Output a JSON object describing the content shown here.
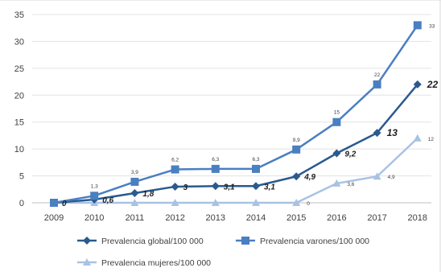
{
  "chart_data": {
    "type": "line",
    "title": "",
    "xlabel": "",
    "ylabel": "",
    "categories": [
      "2009",
      "2010",
      "2011",
      "2012",
      "2013",
      "2014",
      "2015",
      "2016",
      "2017",
      "2018"
    ],
    "ylim": [
      0,
      35
    ],
    "yticks": [
      0,
      5,
      10,
      15,
      20,
      25,
      30,
      35
    ],
    "grid": true,
    "legend_position": "bottom",
    "series": [
      {
        "name": "Prevalencia global/100 000",
        "values": [
          0,
          0.6,
          1.8,
          3,
          3.1,
          3.1,
          4.9,
          9.2,
          13,
          22
        ],
        "labels": [
          "0",
          "0,6",
          "1,8",
          "3",
          "3,1",
          "3,1",
          "4,9",
          "9,2",
          "13",
          "22"
        ],
        "marker": "diamond",
        "color": "#2a5a8f"
      },
      {
        "name": "Prevalencia varones/100 000",
        "values": [
          0,
          1.3,
          3.9,
          6.2,
          6.3,
          6.3,
          9.9,
          15,
          22,
          33
        ],
        "labels": [
          "",
          "1,3",
          "3,9",
          "6,2",
          "6,3",
          "6,3",
          "9,9",
          "15",
          "22",
          "33"
        ],
        "marker": "square",
        "color": "#4a7fc1"
      },
      {
        "name": "Prevalencia mujeres/100 000",
        "values": [
          0,
          0,
          0,
          0,
          0,
          0,
          0,
          3.6,
          4.9,
          12
        ],
        "labels": [
          "",
          "",
          "",
          "",
          "",
          "",
          "0",
          "3,6",
          "4,9",
          "12"
        ],
        "marker": "triangle",
        "color": "#a9c2e3"
      }
    ]
  }
}
